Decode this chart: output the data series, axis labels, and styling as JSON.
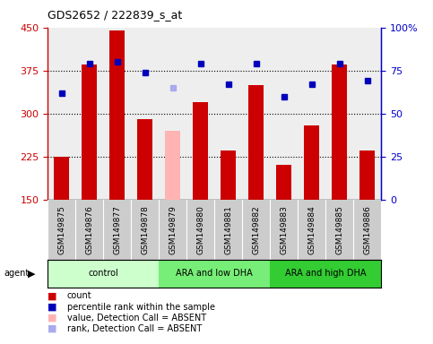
{
  "title": "GDS2652 / 222839_s_at",
  "samples": [
    "GSM149875",
    "GSM149876",
    "GSM149877",
    "GSM149878",
    "GSM149879",
    "GSM149880",
    "GSM149881",
    "GSM149882",
    "GSM149883",
    "GSM149884",
    "GSM149885",
    "GSM149886"
  ],
  "counts": [
    225,
    385,
    445,
    290,
    null,
    320,
    235,
    350,
    210,
    280,
    385,
    235
  ],
  "absent_value": 270,
  "absent_rank_pct": 65,
  "ranks_pct": [
    62,
    79,
    80,
    74,
    null,
    79,
    67,
    79,
    60,
    67,
    79,
    69
  ],
  "bar_colors": [
    "#cc0000",
    "#cc0000",
    "#cc0000",
    "#cc0000",
    "#ffb3b3",
    "#cc0000",
    "#cc0000",
    "#cc0000",
    "#cc0000",
    "#cc0000",
    "#cc0000",
    "#cc0000"
  ],
  "dot_colors": [
    "#0000bb",
    "#0000bb",
    "#0000bb",
    "#0000bb",
    "#aaaaee",
    "#0000bb",
    "#0000bb",
    "#0000bb",
    "#0000bb",
    "#0000bb",
    "#0000bb",
    "#0000bb"
  ],
  "groups": [
    {
      "label": "control",
      "start": 0,
      "end": 3,
      "color": "#ccffcc"
    },
    {
      "label": "ARA and low DHA",
      "start": 4,
      "end": 7,
      "color": "#77ee77"
    },
    {
      "label": "ARA and high DHA",
      "start": 8,
      "end": 11,
      "color": "#33cc33"
    }
  ],
  "ylim_left": [
    150,
    450
  ],
  "ylim_right": [
    0,
    100
  ],
  "yticks_left": [
    150,
    225,
    300,
    375,
    450
  ],
  "yticks_right": [
    0,
    25,
    50,
    75,
    100
  ],
  "hlines": [
    225,
    300,
    375
  ],
  "bar_width": 0.55,
  "background_color": "#ffffff",
  "plot_bg": "#eeeeee",
  "left_color": "#cc0000",
  "right_color": "#0000cc",
  "tick_bg": "#cccccc",
  "legend_items": [
    {
      "color": "#cc0000",
      "label": "count"
    },
    {
      "color": "#0000bb",
      "label": "percentile rank within the sample"
    },
    {
      "color": "#ffb3b3",
      "label": "value, Detection Call = ABSENT"
    },
    {
      "color": "#aaaaee",
      "label": "rank, Detection Call = ABSENT"
    }
  ]
}
